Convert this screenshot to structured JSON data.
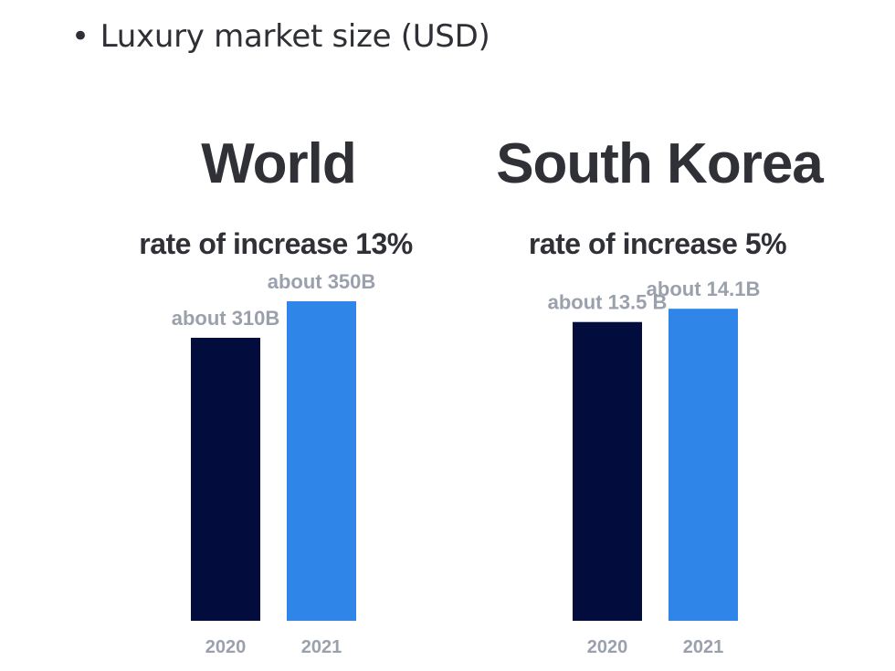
{
  "header": {
    "bullet": "•",
    "text": "Luxury market size (USD)"
  },
  "colors": {
    "bar_2020": "#020d3d",
    "bar_2021": "#2f86e8"
  },
  "chart_data": [
    {
      "type": "bar",
      "title": "World",
      "subtitle": "rate of increase 13%",
      "categories": [
        "2020",
        "2021"
      ],
      "values": [
        310,
        350
      ],
      "unit": "B USD",
      "data_labels": [
        "about 310B",
        "about 350B"
      ],
      "ylim": [
        0,
        400
      ],
      "grid": false,
      "legend": "none"
    },
    {
      "type": "bar",
      "title": "South Korea",
      "subtitle": "rate of increase 5%",
      "categories": [
        "2020",
        "2021"
      ],
      "values": [
        13.5,
        14.1
      ],
      "unit": "B USD",
      "data_labels": [
        "about 13.5 B",
        "about 14.1B"
      ],
      "ylim": [
        0,
        16.5
      ],
      "grid": false,
      "legend": "none"
    }
  ]
}
